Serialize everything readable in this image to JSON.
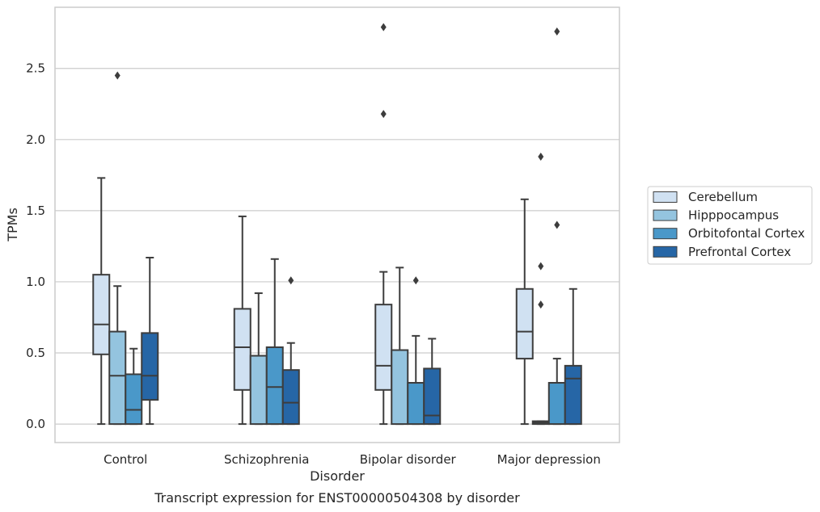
{
  "chart_data": {
    "type": "box",
    "caption": "Transcript expression for ENST00000504308 by disorder",
    "xlabel": "Disorder",
    "ylabel": "TPMs",
    "ylim": [
      -0.13,
      2.93
    ],
    "yticks": [
      "0.0",
      "0.5",
      "1.0",
      "1.5",
      "2.0",
      "2.5"
    ],
    "grid": "horizontal",
    "legend_position": "right",
    "categories": [
      "Control",
      "Schizophrenia",
      "Bipolar disorder",
      "Major depression"
    ],
    "series": [
      {
        "name": "Cerebellum",
        "color": "#d0e1f2",
        "boxes": [
          {
            "whisker_low": 0.0,
            "q1": 0.49,
            "median": 0.7,
            "q3": 1.05,
            "whisker_high": 1.73,
            "outliers": []
          },
          {
            "whisker_low": 0.0,
            "q1": 0.24,
            "median": 0.54,
            "q3": 0.81,
            "whisker_high": 1.46,
            "outliers": []
          },
          {
            "whisker_low": 0.0,
            "q1": 0.24,
            "median": 0.41,
            "q3": 0.84,
            "whisker_high": 1.07,
            "outliers": [
              2.18,
              2.79
            ]
          },
          {
            "whisker_low": 0.0,
            "q1": 0.46,
            "median": 0.65,
            "q3": 0.95,
            "whisker_high": 1.58,
            "outliers": []
          }
        ]
      },
      {
        "name": "Hipppocampus",
        "color": "#94c4df",
        "boxes": [
          {
            "whisker_low": 0.0,
            "q1": 0.0,
            "median": 0.34,
            "q3": 0.65,
            "whisker_high": 0.97,
            "outliers": [
              2.45
            ]
          },
          {
            "whisker_low": 0.0,
            "q1": 0.0,
            "median": 0.48,
            "q3": 0.48,
            "whisker_high": 0.92,
            "outliers": []
          },
          {
            "whisker_low": 0.0,
            "q1": 0.0,
            "median": 0.52,
            "q3": 0.52,
            "whisker_high": 1.1,
            "outliers": []
          },
          {
            "whisker_low": 0.0,
            "q1": 0.0,
            "median": 0.01,
            "q3": 0.02,
            "whisker_high": 0.02,
            "outliers": [
              0.84,
              1.11,
              1.88
            ]
          }
        ]
      },
      {
        "name": "Orbitofontal Cortex",
        "color": "#4a98c9",
        "boxes": [
          {
            "whisker_low": 0.0,
            "q1": 0.0,
            "median": 0.1,
            "q3": 0.35,
            "whisker_high": 0.53,
            "outliers": []
          },
          {
            "whisker_low": 0.0,
            "q1": 0.0,
            "median": 0.26,
            "q3": 0.54,
            "whisker_high": 1.16,
            "outliers": []
          },
          {
            "whisker_low": 0.0,
            "q1": 0.0,
            "median": 0.29,
            "q3": 0.29,
            "whisker_high": 0.62,
            "outliers": [
              1.01
            ]
          },
          {
            "whisker_low": 0.0,
            "q1": 0.0,
            "median": 0.29,
            "q3": 0.29,
            "whisker_high": 0.46,
            "outliers": [
              1.4,
              2.76
            ]
          }
        ]
      },
      {
        "name": "Prefrontal Cortex",
        "color": "#2666a6",
        "boxes": [
          {
            "whisker_low": 0.0,
            "q1": 0.17,
            "median": 0.34,
            "q3": 0.64,
            "whisker_high": 1.17,
            "outliers": []
          },
          {
            "whisker_low": 0.0,
            "q1": 0.0,
            "median": 0.15,
            "q3": 0.38,
            "whisker_high": 0.57,
            "outliers": [
              1.01
            ]
          },
          {
            "whisker_low": 0.0,
            "q1": 0.0,
            "median": 0.06,
            "q3": 0.39,
            "whisker_high": 0.6,
            "outliers": []
          },
          {
            "whisker_low": 0.0,
            "q1": 0.0,
            "median": 0.32,
            "q3": 0.41,
            "whisker_high": 0.95,
            "outliers": []
          }
        ]
      }
    ]
  }
}
